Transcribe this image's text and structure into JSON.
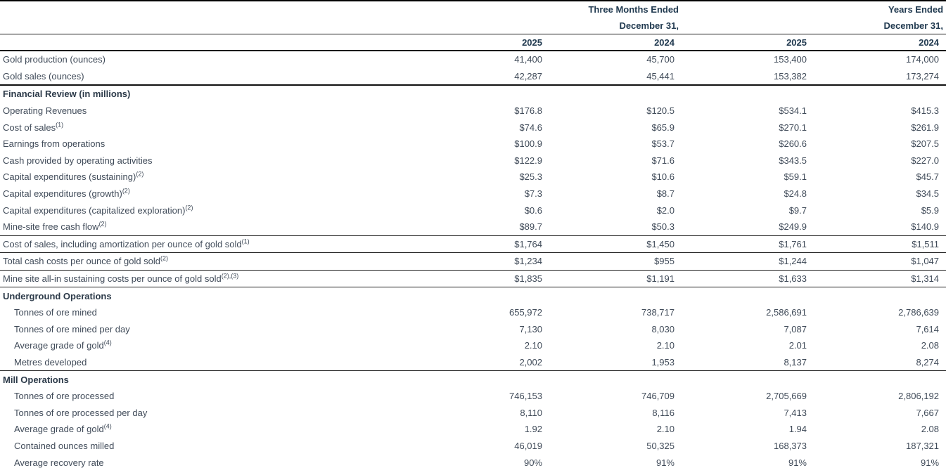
{
  "header": {
    "three_months_ended": "Three Months Ended",
    "three_months_date": "December 31,",
    "years_ended": "Years Ended",
    "years_date": "December 31,",
    "year_columns": [
      "2025",
      "2024",
      "2025",
      "2024"
    ]
  },
  "colors": {
    "header_text": "#213a50",
    "body_text": "#404b59",
    "rule": "#000000",
    "background": "#ffffff"
  },
  "table": {
    "rows": [
      {
        "label": "Gold production (ounces)",
        "values": [
          "41,400",
          "45,700",
          "153,400",
          "174,000"
        ]
      },
      {
        "label": "Gold sales (ounces)",
        "values": [
          "42,287",
          "45,441",
          "153,382",
          "173,274"
        ]
      },
      {
        "label": "Financial Review (in millions)",
        "section": true,
        "thick_top": true,
        "values": [
          "",
          "",
          "",
          ""
        ]
      },
      {
        "label": "Operating Revenues",
        "values": [
          "$176.8",
          "$120.5",
          "$534.1",
          "$415.3"
        ]
      },
      {
        "label": "Cost of sales",
        "sup": "(1)",
        "values": [
          "$74.6",
          "$65.9",
          "$270.1",
          "$261.9"
        ]
      },
      {
        "label": "Earnings from operations",
        "values": [
          "$100.9",
          "$53.7",
          "$260.6",
          "$207.5"
        ]
      },
      {
        "label": "Cash provided by operating activities",
        "values": [
          "$122.9",
          "$71.6",
          "$343.5",
          "$227.0"
        ]
      },
      {
        "label": "Capital expenditures (sustaining)",
        "sup": "(2)",
        "values": [
          "$25.3",
          "$10.6",
          "$59.1",
          "$45.7"
        ]
      },
      {
        "label": "Capital expenditures (growth)",
        "sup": "(2)",
        "values": [
          "$7.3",
          "$8.7",
          "$24.8",
          "$34.5"
        ]
      },
      {
        "label": "Capital expenditures (capitalized exploration)",
        "sup": "(2)",
        "values": [
          "$0.6",
          "$2.0",
          "$9.7",
          "$5.9"
        ]
      },
      {
        "label": "Mine-site free cash flow",
        "sup": "(2)",
        "values": [
          "$89.7",
          "$50.3",
          "$249.9",
          "$140.9"
        ]
      },
      {
        "label": "Cost of sales, including amortization per ounce of gold sold",
        "sup": "(1)",
        "rule_top": true,
        "values": [
          "$1,764",
          "$1,450",
          "$1,761",
          "$1,511"
        ]
      },
      {
        "label": "Total cash costs per ounce of gold sold",
        "sup": "(2)",
        "rule_top": true,
        "values": [
          "$1,234",
          "$955",
          "$1,244",
          "$1,047"
        ]
      },
      {
        "label": "Mine site all-in sustaining costs per ounce of gold sold",
        "sup": "(2),(3)",
        "rule_top": true,
        "values": [
          "$1,835",
          "$1,191",
          "$1,633",
          "$1,314"
        ]
      },
      {
        "label": "Underground Operations",
        "section": true,
        "rule_top": true,
        "values": [
          "",
          "",
          "",
          ""
        ]
      },
      {
        "label": "Tonnes of ore mined",
        "indent": true,
        "values": [
          "655,972",
          "738,717",
          "2,586,691",
          "2,786,639"
        ]
      },
      {
        "label": "Tonnes of ore mined per day",
        "indent": true,
        "values": [
          "7,130",
          "8,030",
          "7,087",
          "7,614"
        ]
      },
      {
        "label": "Average grade of gold",
        "sup": "(4)",
        "indent": true,
        "values": [
          "2.10",
          "2.10",
          "2.01",
          "2.08"
        ]
      },
      {
        "label": "Metres developed",
        "indent": true,
        "values": [
          "2,002",
          "1,953",
          "8,137",
          "8,274"
        ]
      },
      {
        "label": "Mill Operations",
        "section": true,
        "rule_top": true,
        "values": [
          "",
          "",
          "",
          ""
        ]
      },
      {
        "label": "Tonnes of ore processed",
        "indent": true,
        "values": [
          "746,153",
          "746,709",
          "2,705,669",
          "2,806,192"
        ]
      },
      {
        "label": "Tonnes of ore processed per day",
        "indent": true,
        "values": [
          "8,110",
          "8,116",
          "7,413",
          "7,667"
        ]
      },
      {
        "label": "Average grade of gold",
        "sup": "(4)",
        "indent": true,
        "values": [
          "1.92",
          "2.10",
          "1.94",
          "2.08"
        ]
      },
      {
        "label": "Contained ounces milled",
        "indent": true,
        "values": [
          "46,019",
          "50,325",
          "168,373",
          "187,321"
        ]
      },
      {
        "label": "Average recovery rate",
        "indent": true,
        "values": [
          "90%",
          "91%",
          "91%",
          "91%"
        ]
      }
    ]
  }
}
